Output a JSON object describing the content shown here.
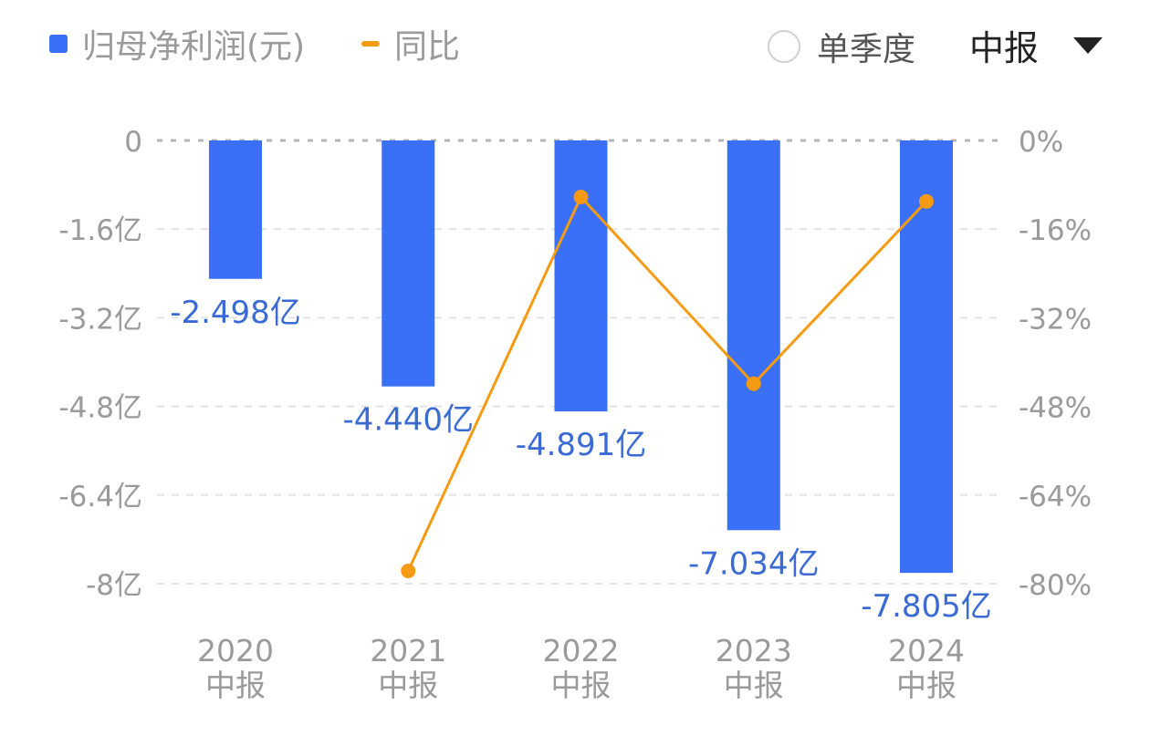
{
  "legend": {
    "bar_label": "归母净利润(元)",
    "line_label": "同比"
  },
  "controls": {
    "single_quarter_label": "单季度",
    "period_label": "中报"
  },
  "colors": {
    "bar": "#3a6ff7",
    "line": "#f59a13",
    "value_label": "#3a6ad4",
    "axis_text": "#9a9a9a",
    "grid": "#e3e3e3"
  },
  "chart_data": {
    "type": "bar+line",
    "categories": [
      {
        "year": "2020",
        "period": "中报"
      },
      {
        "year": "2021",
        "period": "中报"
      },
      {
        "year": "2022",
        "period": "中报"
      },
      {
        "year": "2023",
        "period": "中报"
      },
      {
        "year": "2024",
        "period": "中报"
      }
    ],
    "bar_series": {
      "name": "归母净利润(元)",
      "values": [
        -2.498,
        -4.44,
        -4.891,
        -7.034,
        -7.805
      ],
      "labels": [
        "-2.498亿",
        "-4.440亿",
        "-4.891亿",
        "-7.034亿",
        "-7.805亿"
      ]
    },
    "line_series": {
      "name": "同比",
      "values": [
        null,
        -77.7,
        -10.2,
        -43.9,
        -11.0
      ]
    },
    "y_left": {
      "range": [
        -8,
        0
      ],
      "ticks": [
        0,
        -1.6,
        -3.2,
        -4.8,
        -6.4,
        -8
      ],
      "tick_labels": [
        "0",
        "-1.6亿",
        "-3.2亿",
        "-4.8亿",
        "-6.4亿",
        "-8亿"
      ]
    },
    "y_right": {
      "range": [
        -80,
        0
      ],
      "ticks": [
        0,
        -16,
        -32,
        -48,
        -64,
        -80
      ],
      "tick_labels": [
        "0%",
        "-16%",
        "-32%",
        "-48%",
        "-64%",
        "-80%"
      ]
    },
    "grid": true,
    "legend_position": "top-left"
  }
}
